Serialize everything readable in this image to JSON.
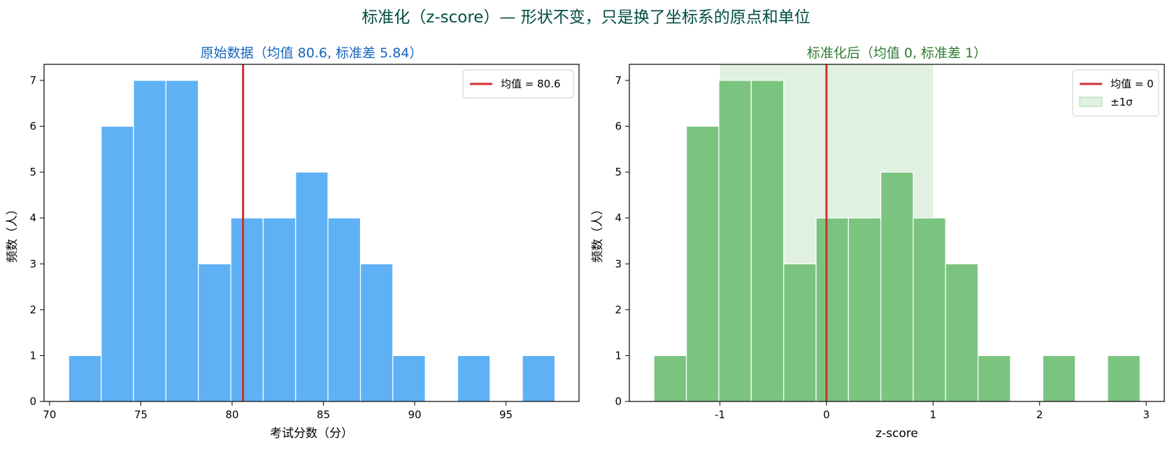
{
  "figure": {
    "suptitle": "标准化（z-score）— 形状不变，只是换了坐标系的原点和单位",
    "suptitle_color": "#004d40"
  },
  "chart_data": [
    {
      "type": "bar",
      "title": "原始数据（均值 80.6, 标准差 5.84）",
      "title_color": "#1565c0",
      "xlabel": "考试分数（分）",
      "ylabel": "频数（人）",
      "bar_color": "#5eb1f5",
      "mean_line": {
        "x": 80.6,
        "color": "#d32f2f",
        "label": "均值 = 80.6"
      },
      "bins": [
        {
          "x0": 71.05,
          "x1": 72.83,
          "count": 1
        },
        {
          "x0": 72.83,
          "x1": 74.6,
          "count": 6
        },
        {
          "x0": 74.6,
          "x1": 76.38,
          "count": 7
        },
        {
          "x0": 76.38,
          "x1": 78.15,
          "count": 7
        },
        {
          "x0": 78.15,
          "x1": 79.93,
          "count": 3
        },
        {
          "x0": 79.93,
          "x1": 81.7,
          "count": 4
        },
        {
          "x0": 81.7,
          "x1": 83.48,
          "count": 4
        },
        {
          "x0": 83.48,
          "x1": 85.25,
          "count": 5
        },
        {
          "x0": 85.25,
          "x1": 87.03,
          "count": 4
        },
        {
          "x0": 87.03,
          "x1": 88.8,
          "count": 3
        },
        {
          "x0": 88.8,
          "x1": 90.58,
          "count": 1
        },
        {
          "x0": 90.58,
          "x1": 92.35,
          "count": 0
        },
        {
          "x0": 92.35,
          "x1": 94.13,
          "count": 1
        },
        {
          "x0": 94.13,
          "x1": 95.9,
          "count": 0
        },
        {
          "x0": 95.9,
          "x1": 97.68,
          "count": 1
        }
      ],
      "xlim": [
        69.7,
        99.0
      ],
      "ylim": [
        0,
        7.35
      ],
      "xticks": [
        70,
        75,
        80,
        85,
        90,
        95
      ],
      "xtick_labels": [
        "70",
        "75",
        "80",
        "85",
        "90",
        "95"
      ],
      "yticks": [
        0,
        1,
        2,
        3,
        4,
        5,
        6,
        7
      ],
      "ytick_labels": [
        "0",
        "1",
        "2",
        "3",
        "4",
        "5",
        "6",
        "7"
      ],
      "legend": {
        "placement": "upper right"
      }
    },
    {
      "type": "bar",
      "title": "标准化后（均值 0, 标准差 1）",
      "title_color": "#2e7d32",
      "xlabel": "z-score",
      "ylabel": "频数（人）",
      "bar_color": "#7bc47f",
      "mean_line": {
        "x": 0,
        "color": "#d32f2f",
        "label": "均值 = 0"
      },
      "band": {
        "x0": -1,
        "x1": 1,
        "color": "#c8e6c9",
        "label": "±1σ"
      },
      "bins": [
        {
          "x0": -1.62,
          "x1": -1.315,
          "count": 1
        },
        {
          "x0": -1.315,
          "x1": -1.01,
          "count": 6
        },
        {
          "x0": -1.01,
          "x1": -0.706,
          "count": 7
        },
        {
          "x0": -0.706,
          "x1": -0.402,
          "count": 7
        },
        {
          "x0": -0.402,
          "x1": -0.098,
          "count": 3
        },
        {
          "x0": -0.098,
          "x1": 0.206,
          "count": 4
        },
        {
          "x0": 0.206,
          "x1": 0.51,
          "count": 4
        },
        {
          "x0": 0.51,
          "x1": 0.814,
          "count": 5
        },
        {
          "x0": 0.814,
          "x1": 1.118,
          "count": 4
        },
        {
          "x0": 1.118,
          "x1": 1.422,
          "count": 3
        },
        {
          "x0": 1.422,
          "x1": 1.726,
          "count": 1
        },
        {
          "x0": 1.726,
          "x1": 2.03,
          "count": 0
        },
        {
          "x0": 2.03,
          "x1": 2.334,
          "count": 1
        },
        {
          "x0": 2.334,
          "x1": 2.638,
          "count": 0
        },
        {
          "x0": 2.638,
          "x1": 2.942,
          "count": 1
        }
      ],
      "xlim": [
        -1.85,
        3.17
      ],
      "ylim": [
        0,
        7.35
      ],
      "xticks": [
        -1,
        0,
        1,
        2,
        3
      ],
      "xtick_labels": [
        "-1",
        "0",
        "1",
        "2",
        "3"
      ],
      "yticks": [
        0,
        1,
        2,
        3,
        4,
        5,
        6,
        7
      ],
      "ytick_labels": [
        "0",
        "1",
        "2",
        "3",
        "4",
        "5",
        "6",
        "7"
      ],
      "legend": {
        "placement": "upper right"
      }
    }
  ]
}
